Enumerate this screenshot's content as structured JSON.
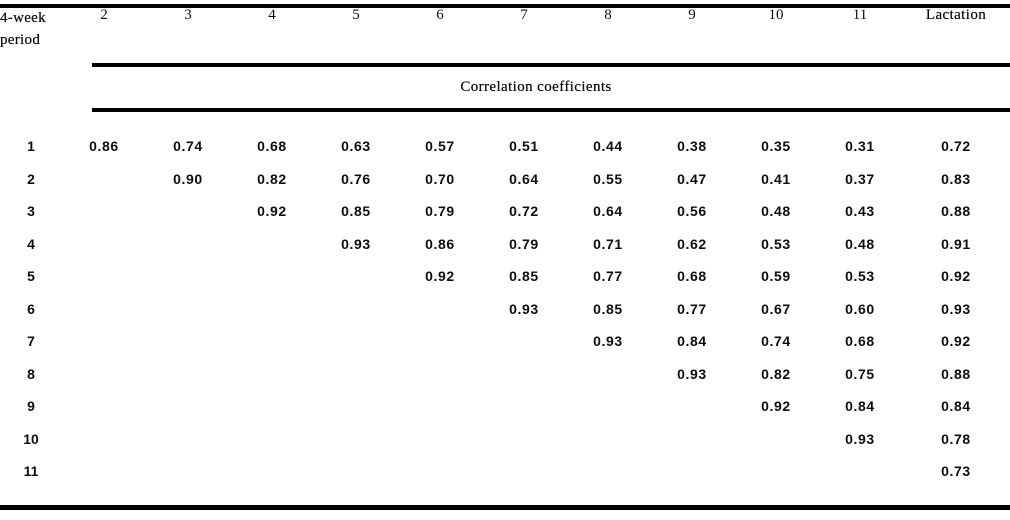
{
  "table": {
    "stub": {
      "line1": "4-week",
      "line2": "period"
    },
    "columns": [
      "2",
      "3",
      "4",
      "5",
      "6",
      "7",
      "8",
      "9",
      "10",
      "11",
      "Lactation"
    ],
    "spanner": "Correlation coefficients",
    "rows": [
      {
        "period": "1",
        "cells": [
          "0.86",
          "0.74",
          "0.68",
          "0.63",
          "0.57",
          "0.51",
          "0.44",
          "0.38",
          "0.35",
          "0.31",
          "0.72"
        ]
      },
      {
        "period": "2",
        "cells": [
          "",
          "0.90",
          "0.82",
          "0.76",
          "0.70",
          "0.64",
          "0.55",
          "0.47",
          "0.41",
          "0.37",
          "0.83"
        ]
      },
      {
        "period": "3",
        "cells": [
          "",
          "",
          "0.92",
          "0.85",
          "0.79",
          "0.72",
          "0.64",
          "0.56",
          "0.48",
          "0.43",
          "0.88"
        ]
      },
      {
        "period": "4",
        "cells": [
          "",
          "",
          "",
          "0.93",
          "0.86",
          "0.79",
          "0.71",
          "0.62",
          "0.53",
          "0.48",
          "0.91"
        ]
      },
      {
        "period": "5",
        "cells": [
          "",
          "",
          "",
          "",
          "0.92",
          "0.85",
          "0.77",
          "0.68",
          "0.59",
          "0.53",
          "0.92"
        ]
      },
      {
        "period": "6",
        "cells": [
          "",
          "",
          "",
          "",
          "",
          "0.93",
          "0.85",
          "0.77",
          "0.67",
          "0.60",
          "0.93"
        ]
      },
      {
        "period": "7",
        "cells": [
          "",
          "",
          "",
          "",
          "",
          "",
          "0.93",
          "0.84",
          "0.74",
          "0.68",
          "0.92"
        ]
      },
      {
        "period": "8",
        "cells": [
          "",
          "",
          "",
          "",
          "",
          "",
          "",
          "0.93",
          "0.82",
          "0.75",
          "0.88"
        ]
      },
      {
        "period": "9",
        "cells": [
          "",
          "",
          "",
          "",
          "",
          "",
          "",
          "",
          "0.92",
          "0.84",
          "0.84"
        ]
      },
      {
        "period": "10",
        "cells": [
          "",
          "",
          "",
          "",
          "",
          "",
          "",
          "",
          "",
          "0.93",
          "0.78"
        ]
      },
      {
        "period": "11",
        "cells": [
          "",
          "",
          "",
          "",
          "",
          "",
          "",
          "",
          "",
          "",
          "0.73"
        ]
      }
    ],
    "colors": {
      "rule": "#000000",
      "text": "#0d0d0d",
      "background": "#ffffff"
    }
  }
}
